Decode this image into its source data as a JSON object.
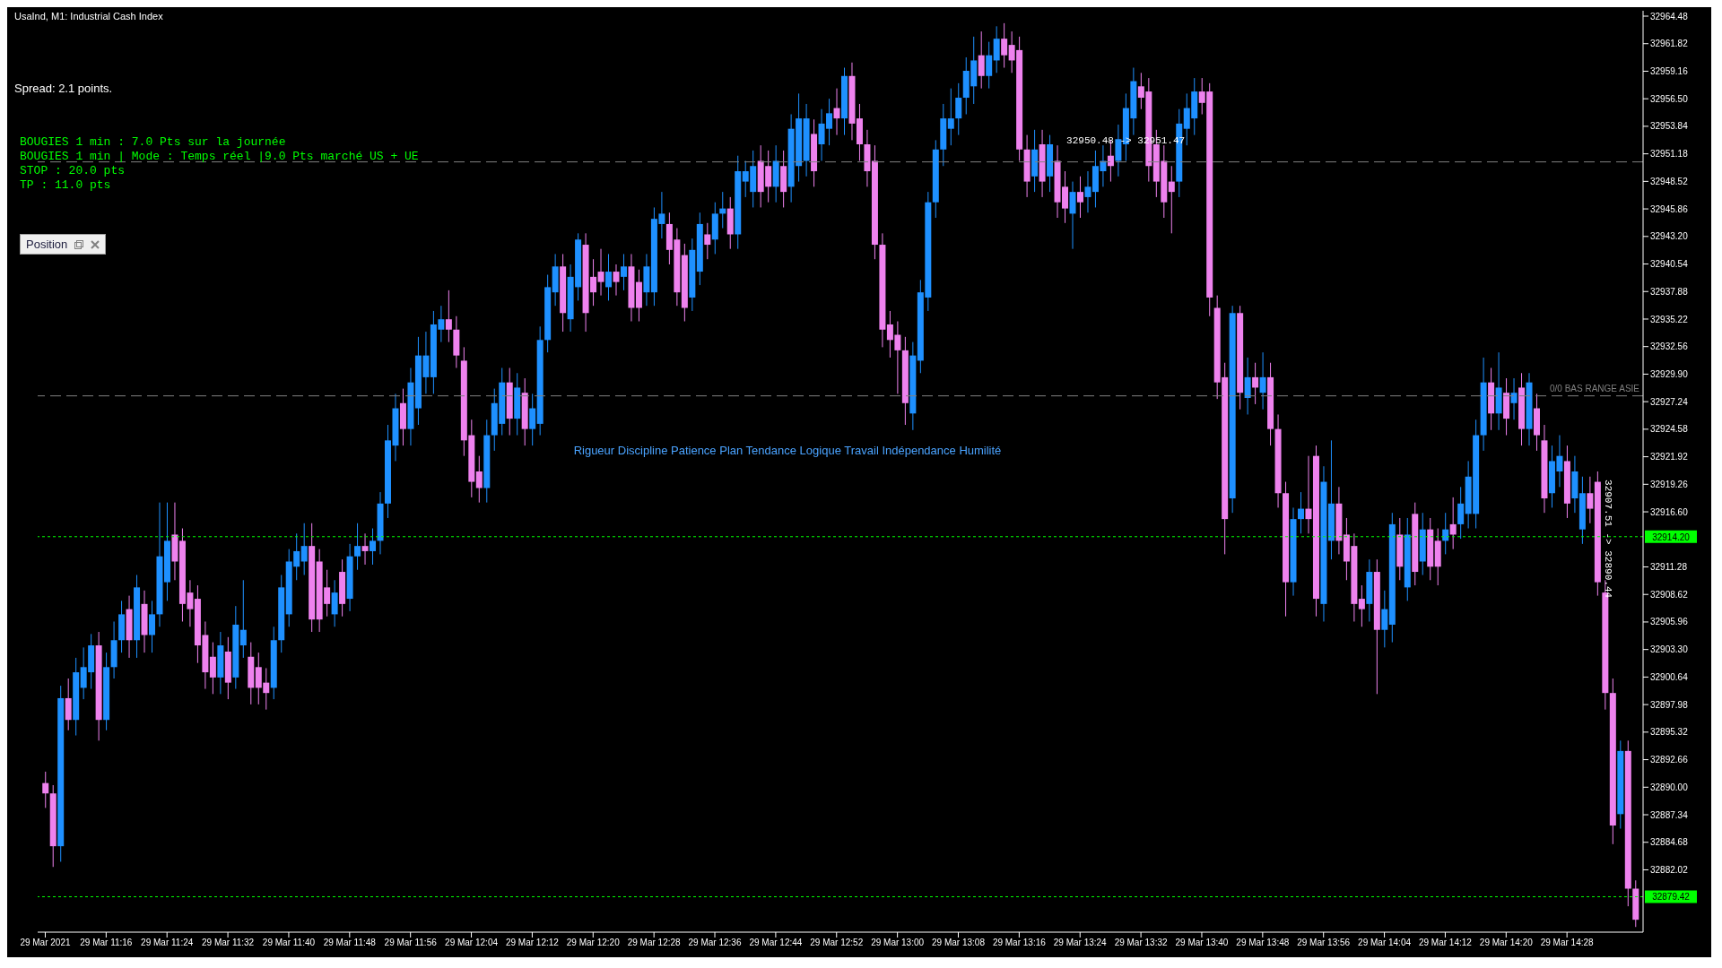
{
  "chart_data": {
    "type": "candlestick",
    "title": "UsaInd, M1: Industrial Cash Index",
    "annotations": [
      "Spread: 2.1 points.",
      "BOUGIES 1 min : 7.0 Pts sur la journée",
      "BOUGIES 1 min | Mode : Temps réel |9.0 Pts marché US + UE",
      "STOP : 20.0 pts",
      "TP : 11.0 pts",
      "Position",
      "Rigueur Discipline Patience Plan Tendance Logique Travail Indépendance Humilité",
      {
        "text": "32950.48 -> 32951.47",
        "x": "2021-03-29T13:30",
        "y": 32951.5
      },
      {
        "text": "32907.51 -> 32890.44",
        "x": "2021-03-29T14:33",
        "y": 32914
      }
    ],
    "x": [
      "2021-03-29T11:08",
      "2021-03-29T11:09",
      "2021-03-29T11:10",
      "2021-03-29T11:11",
      "2021-03-29T11:12",
      "2021-03-29T11:13",
      "2021-03-29T11:14",
      "2021-03-29T11:15",
      "2021-03-29T11:16",
      "2021-03-29T11:17",
      "2021-03-29T11:18",
      "2021-03-29T11:19",
      "2021-03-29T11:20",
      "2021-03-29T11:21",
      "2021-03-29T11:22",
      "2021-03-29T11:23",
      "2021-03-29T11:24",
      "2021-03-29T11:25",
      "2021-03-29T11:26",
      "2021-03-29T11:27",
      "2021-03-29T11:28",
      "2021-03-29T11:29",
      "2021-03-29T11:30",
      "2021-03-29T11:31",
      "2021-03-29T11:32",
      "2021-03-29T11:33",
      "2021-03-29T11:34",
      "2021-03-29T11:35",
      "2021-03-29T11:36",
      "2021-03-29T11:37",
      "2021-03-29T11:38",
      "2021-03-29T11:39",
      "2021-03-29T11:40",
      "2021-03-29T11:41",
      "2021-03-29T11:42",
      "2021-03-29T11:43",
      "2021-03-29T11:44",
      "2021-03-29T11:45",
      "2021-03-29T11:46",
      "2021-03-29T11:47",
      "2021-03-29T11:48",
      "2021-03-29T11:49",
      "2021-03-29T11:50",
      "2021-03-29T11:51",
      "2021-03-29T11:52",
      "2021-03-29T11:53",
      "2021-03-29T11:54",
      "2021-03-29T11:55",
      "2021-03-29T11:56",
      "2021-03-29T11:57",
      "2021-03-29T11:58",
      "2021-03-29T11:59",
      "2021-03-29T12:00",
      "2021-03-29T12:01",
      "2021-03-29T12:02",
      "2021-03-29T12:03",
      "2021-03-29T12:04",
      "2021-03-29T12:05",
      "2021-03-29T12:06",
      "2021-03-29T12:07",
      "2021-03-29T12:08",
      "2021-03-29T12:09",
      "2021-03-29T12:10",
      "2021-03-29T12:11",
      "2021-03-29T12:12",
      "2021-03-29T12:13",
      "2021-03-29T12:14",
      "2021-03-29T12:15",
      "2021-03-29T12:16",
      "2021-03-29T12:17",
      "2021-03-29T12:18",
      "2021-03-29T12:19",
      "2021-03-29T12:20",
      "2021-03-29T12:21",
      "2021-03-29T12:22",
      "2021-03-29T12:23",
      "2021-03-29T12:24",
      "2021-03-29T12:25",
      "2021-03-29T12:26",
      "2021-03-29T12:27",
      "2021-03-29T12:28",
      "2021-03-29T12:29",
      "2021-03-29T12:30",
      "2021-03-29T12:31",
      "2021-03-29T12:32",
      "2021-03-29T12:33",
      "2021-03-29T12:34",
      "2021-03-29T12:35",
      "2021-03-29T12:36",
      "2021-03-29T12:37",
      "2021-03-29T12:38",
      "2021-03-29T12:39",
      "2021-03-29T12:40",
      "2021-03-29T12:41",
      "2021-03-29T12:42",
      "2021-03-29T12:43",
      "2021-03-29T12:44",
      "2021-03-29T12:45",
      "2021-03-29T12:46",
      "2021-03-29T12:47",
      "2021-03-29T12:48",
      "2021-03-29T12:49",
      "2021-03-29T12:50",
      "2021-03-29T12:51",
      "2021-03-29T12:52",
      "2021-03-29T12:53",
      "2021-03-29T12:54",
      "2021-03-29T12:55",
      "2021-03-29T12:56",
      "2021-03-29T12:57",
      "2021-03-29T12:58",
      "2021-03-29T12:59",
      "2021-03-29T13:00",
      "2021-03-29T13:01",
      "2021-03-29T13:02",
      "2021-03-29T13:03",
      "2021-03-29T13:04",
      "2021-03-29T13:05",
      "2021-03-29T13:06",
      "2021-03-29T13:07",
      "2021-03-29T13:08",
      "2021-03-29T13:09",
      "2021-03-29T13:10",
      "2021-03-29T13:11",
      "2021-03-29T13:12",
      "2021-03-29T13:13",
      "2021-03-29T13:14",
      "2021-03-29T13:15",
      "2021-03-29T13:16",
      "2021-03-29T13:17",
      "2021-03-29T13:18",
      "2021-03-29T13:19",
      "2021-03-29T13:20",
      "2021-03-29T13:21",
      "2021-03-29T13:22",
      "2021-03-29T13:23",
      "2021-03-29T13:24",
      "2021-03-29T13:25",
      "2021-03-29T13:26",
      "2021-03-29T13:27",
      "2021-03-29T13:28",
      "2021-03-29T13:29",
      "2021-03-29T13:30",
      "2021-03-29T13:31",
      "2021-03-29T13:32",
      "2021-03-29T13:33",
      "2021-03-29T13:34",
      "2021-03-29T13:35",
      "2021-03-29T13:36",
      "2021-03-29T13:37",
      "2021-03-29T13:38",
      "2021-03-29T13:39",
      "2021-03-29T13:40",
      "2021-03-29T13:41",
      "2021-03-29T13:42",
      "2021-03-29T13:43",
      "2021-03-29T13:44",
      "2021-03-29T13:45",
      "2021-03-29T13:46",
      "2021-03-29T13:47",
      "2021-03-29T13:48",
      "2021-03-29T13:49",
      "2021-03-29T13:50",
      "2021-03-29T13:51",
      "2021-03-29T13:52",
      "2021-03-29T13:53",
      "2021-03-29T13:54",
      "2021-03-29T13:55",
      "2021-03-29T13:56",
      "2021-03-29T13:57",
      "2021-03-29T13:58",
      "2021-03-29T13:59",
      "2021-03-29T14:00",
      "2021-03-29T14:01",
      "2021-03-29T14:02",
      "2021-03-29T14:03",
      "2021-03-29T14:04",
      "2021-03-29T14:05",
      "2021-03-29T14:06",
      "2021-03-29T14:07",
      "2021-03-29T14:08",
      "2021-03-29T14:09",
      "2021-03-29T14:10",
      "2021-03-29T14:11",
      "2021-03-29T14:12",
      "2021-03-29T14:13",
      "2021-03-29T14:14",
      "2021-03-29T14:15",
      "2021-03-29T14:16",
      "2021-03-29T14:17",
      "2021-03-29T14:18",
      "2021-03-29T14:19",
      "2021-03-29T14:20",
      "2021-03-29T14:21",
      "2021-03-29T14:22",
      "2021-03-29T14:23",
      "2021-03-29T14:24",
      "2021-03-29T14:25",
      "2021-03-29T14:26",
      "2021-03-29T14:27",
      "2021-03-29T14:28",
      "2021-03-29T14:29",
      "2021-03-29T14:30",
      "2021-03-29T14:31",
      "2021-03-29T14:32",
      "2021-03-29T14:33",
      "2021-03-29T14:34",
      "2021-03-29T14:35",
      "2021-03-29T14:36",
      "2021-03-29T14:37"
    ],
    "ohlc": [
      [
        32890.4,
        32891.5,
        32888.0,
        32889.4
      ],
      [
        32889.4,
        32890.2,
        32882.3,
        32884.3
      ],
      [
        32884.3,
        32899.8,
        32882.8,
        32898.6
      ],
      [
        32898.6,
        32900.5,
        32895.5,
        32896.5
      ],
      [
        32896.5,
        32902.5,
        32895.0,
        32901.1
      ],
      [
        32899.6,
        32903.5,
        32898.5,
        32901.6
      ],
      [
        32901.1,
        32904.8,
        32899.5,
        32903.7
      ],
      [
        32903.7,
        32905.0,
        32894.5,
        32896.5
      ],
      [
        32896.5,
        32903.0,
        32895.5,
        32901.6
      ],
      [
        32901.6,
        32906.0,
        32900.5,
        32904.2
      ],
      [
        32904.2,
        32908.0,
        32903.0,
        32906.7
      ],
      [
        32907.2,
        32908.5,
        32902.5,
        32904.2
      ],
      [
        32904.2,
        32910.5,
        32902.5,
        32909.3
      ],
      [
        32907.7,
        32909.0,
        32903.0,
        32904.7
      ],
      [
        32904.7,
        32908.0,
        32903.0,
        32906.7
      ],
      [
        32906.7,
        32917.5,
        32905.5,
        32912.3
      ],
      [
        32909.8,
        32917.5,
        32908.0,
        32913.8
      ],
      [
        32914.4,
        32917.5,
        32910.0,
        32911.8
      ],
      [
        32913.8,
        32915.0,
        32906.0,
        32907.7
      ],
      [
        32908.8,
        32910.0,
        32905.5,
        32907.2
      ],
      [
        32908.2,
        32909.5,
        32902.0,
        32903.7
      ],
      [
        32904.7,
        32906.0,
        32899.5,
        32901.1
      ],
      [
        32902.6,
        32904.0,
        32899.0,
        32900.6
      ],
      [
        32900.6,
        32905.0,
        32899.0,
        32903.7
      ],
      [
        32903.1,
        32904.5,
        32898.5,
        32900.1
      ],
      [
        32900.6,
        32907.5,
        32899.5,
        32905.7
      ],
      [
        32903.7,
        32910.0,
        32902.5,
        32905.2
      ],
      [
        32902.6,
        32904.0,
        32898.0,
        32899.6
      ],
      [
        32901.6,
        32903.0,
        32898.0,
        32899.6
      ],
      [
        32900.1,
        32901.5,
        32897.5,
        32899.1
      ],
      [
        32899.6,
        32905.5,
        32898.5,
        32904.2
      ],
      [
        32904.2,
        32910.5,
        32903.0,
        32909.3
      ],
      [
        32906.7,
        32913.0,
        32905.5,
        32911.8
      ],
      [
        32911.3,
        32914.5,
        32910.0,
        32912.8
      ],
      [
        32911.8,
        32915.5,
        32910.5,
        32913.3
      ],
      [
        32913.3,
        32915.5,
        32905.0,
        32906.2
      ],
      [
        32911.8,
        32913.0,
        32905.0,
        32906.2
      ],
      [
        32909.3,
        32911.0,
        32906.5,
        32907.7
      ],
      [
        32906.7,
        32910.0,
        32905.5,
        32908.8
      ],
      [
        32910.8,
        32912.0,
        32906.5,
        32907.7
      ],
      [
        32908.2,
        32913.5,
        32907.0,
        32912.3
      ],
      [
        32912.3,
        32915.5,
        32911.0,
        32913.3
      ],
      [
        32913.3,
        32914.5,
        32911.5,
        32912.8
      ],
      [
        32912.8,
        32915.0,
        32911.5,
        32913.8
      ],
      [
        32913.8,
        32918.5,
        32912.5,
        32917.4
      ],
      [
        32917.4,
        32925.0,
        32916.0,
        32923.5
      ],
      [
        32923.0,
        32928.0,
        32921.5,
        32926.6
      ],
      [
        32927.1,
        32928.5,
        32923.0,
        32924.6
      ],
      [
        32924.6,
        32930.5,
        32923.0,
        32929.1
      ],
      [
        32926.6,
        32933.5,
        32925.0,
        32931.7
      ],
      [
        32929.6,
        32934.0,
        32928.0,
        32931.7
      ],
      [
        32929.6,
        32936.0,
        32928.0,
        32934.7
      ],
      [
        32934.2,
        32936.5,
        32933.0,
        32935.2
      ],
      [
        32935.2,
        32938.0,
        32933.0,
        32934.2
      ],
      [
        32934.2,
        32935.5,
        32930.5,
        32931.7
      ],
      [
        32931.2,
        32932.5,
        32922.0,
        32923.5
      ],
      [
        32924.0,
        32925.5,
        32918.0,
        32919.5
      ],
      [
        32920.5,
        32922.0,
        32917.5,
        32918.9
      ],
      [
        32918.9,
        32925.5,
        32917.5,
        32924.0
      ],
      [
        32924.0,
        32928.5,
        32922.5,
        32927.1
      ],
      [
        32925.1,
        32930.5,
        32924.0,
        32929.1
      ],
      [
        32929.1,
        32930.5,
        32924.0,
        32925.6
      ],
      [
        32925.6,
        32930.0,
        32924.0,
        32928.6
      ],
      [
        32928.1,
        32929.5,
        32923.0,
        32924.6
      ],
      [
        32924.6,
        32928.0,
        32923.0,
        32926.6
      ],
      [
        32925.1,
        32934.5,
        32924.0,
        32933.2
      ],
      [
        32933.2,
        32939.5,
        32932.0,
        32938.3
      ],
      [
        32937.8,
        32941.5,
        32936.5,
        32940.3
      ],
      [
        32940.3,
        32941.5,
        32934.0,
        32935.8
      ],
      [
        32935.2,
        32940.5,
        32934.0,
        32939.3
      ],
      [
        32938.3,
        32943.5,
        32937.0,
        32942.9
      ],
      [
        32942.4,
        32943.5,
        32934.0,
        32935.8
      ],
      [
        32939.3,
        32941.0,
        32936.5,
        32937.8
      ],
      [
        32939.8,
        32942.0,
        32937.5,
        32938.8
      ],
      [
        32938.3,
        32941.5,
        32937.0,
        32939.8
      ],
      [
        32939.8,
        32940.5,
        32937.5,
        32938.8
      ],
      [
        32939.3,
        32941.5,
        32938.0,
        32940.3
      ],
      [
        32940.3,
        32941.5,
        32935.0,
        32936.3
      ],
      [
        32938.8,
        32940.0,
        32935.0,
        32936.3
      ],
      [
        32937.8,
        32941.5,
        32936.5,
        32940.3
      ],
      [
        32937.8,
        32946.0,
        32936.5,
        32944.9
      ],
      [
        32944.4,
        32947.5,
        32943.0,
        32945.4
      ],
      [
        32944.4,
        32945.5,
        32940.5,
        32941.9
      ],
      [
        32942.9,
        32944.0,
        32936.5,
        32937.8
      ],
      [
        32941.4,
        32942.5,
        32935.0,
        32936.3
      ],
      [
        32937.3,
        32943.0,
        32936.0,
        32941.9
      ],
      [
        32939.8,
        32945.5,
        32938.5,
        32944.4
      ],
      [
        32943.4,
        32944.5,
        32941.0,
        32942.4
      ],
      [
        32942.9,
        32946.5,
        32941.5,
        32945.4
      ],
      [
        32945.4,
        32947.5,
        32944.0,
        32945.9
      ],
      [
        32945.9,
        32947.0,
        32942.0,
        32943.4
      ],
      [
        32943.4,
        32951.0,
        32942.0,
        32949.5
      ],
      [
        32948.5,
        32950.5,
        32947.0,
        32949.5
      ],
      [
        32947.5,
        32951.5,
        32946.0,
        32950.0
      ],
      [
        32950.5,
        32952.0,
        32946.0,
        32947.5
      ],
      [
        32950.0,
        32951.5,
        32946.5,
        32948.0
      ],
      [
        32948.0,
        32952.0,
        32946.5,
        32950.5
      ],
      [
        32950.0,
        32951.5,
        32946.0,
        32947.5
      ],
      [
        32948.0,
        32955.0,
        32946.5,
        32953.6
      ],
      [
        32950.0,
        32957.0,
        32948.5,
        32954.6
      ],
      [
        32950.5,
        32956.0,
        32949.0,
        32954.6
      ],
      [
        32953.1,
        32954.5,
        32948.0,
        32949.5
      ],
      [
        32952.1,
        32955.5,
        32950.5,
        32954.1
      ],
      [
        32953.6,
        32956.5,
        32952.0,
        32955.1
      ],
      [
        32955.6,
        32957.5,
        32953.0,
        32954.6
      ],
      [
        32954.6,
        32959.5,
        32953.0,
        32958.7
      ],
      [
        32958.7,
        32960.0,
        32952.5,
        32954.1
      ],
      [
        32954.6,
        32956.0,
        32950.5,
        32952.1
      ],
      [
        32952.1,
        32953.5,
        32948.0,
        32949.5
      ],
      [
        32950.5,
        32952.0,
        32941.0,
        32942.4
      ],
      [
        32942.4,
        32943.5,
        32932.5,
        32934.2
      ],
      [
        32934.7,
        32936.0,
        32931.5,
        32933.2
      ],
      [
        32933.7,
        32935.0,
        32928.0,
        32932.2
      ],
      [
        32932.2,
        32933.5,
        32925.0,
        32927.1
      ],
      [
        32926.1,
        32933.0,
        32924.5,
        32931.7
      ],
      [
        32931.2,
        32939.0,
        32930.0,
        32937.8
      ],
      [
        32937.3,
        32947.5,
        32936.0,
        32946.5
      ],
      [
        32946.5,
        32952.5,
        32945.0,
        32951.6
      ],
      [
        32951.6,
        32956.0,
        32950.0,
        32954.6
      ],
      [
        32953.6,
        32957.5,
        32952.0,
        32954.6
      ],
      [
        32954.6,
        32958.0,
        32953.0,
        32956.6
      ],
      [
        32956.6,
        32960.5,
        32955.0,
        32959.2
      ],
      [
        32957.7,
        32962.5,
        32956.0,
        32960.2
      ],
      [
        32960.7,
        32963.0,
        32957.5,
        32958.7
      ],
      [
        32958.7,
        32962.0,
        32957.5,
        32960.7
      ],
      [
        32960.2,
        32963.5,
        32959.0,
        32962.3
      ],
      [
        32962.3,
        32963.8,
        32959.5,
        32960.7
      ],
      [
        32961.7,
        32963.0,
        32959.0,
        32960.2
      ],
      [
        32961.2,
        32962.5,
        32950.5,
        32951.6
      ],
      [
        32951.6,
        32953.0,
        32947.0,
        32948.5
      ],
      [
        32949.0,
        32953.5,
        32947.5,
        32951.6
      ],
      [
        32952.1,
        32953.5,
        32947.0,
        32948.5
      ],
      [
        32949.0,
        32953.0,
        32947.5,
        32952.1
      ],
      [
        32950.5,
        32952.0,
        32945.0,
        32946.5
      ],
      [
        32948.0,
        32949.5,
        32944.5,
        32945.9
      ],
      [
        32945.4,
        32948.5,
        32942.0,
        32947.5
      ],
      [
        32947.5,
        32949.0,
        32945.0,
        32946.5
      ],
      [
        32947.0,
        32949.5,
        32945.5,
        32948.0
      ],
      [
        32947.5,
        32951.5,
        32946.0,
        32950.0
      ],
      [
        32949.5,
        32952.0,
        32948.0,
        32950.5
      ],
      [
        32951.0,
        32952.5,
        32948.5,
        32950.0
      ],
      [
        32950.5,
        32954.0,
        32949.0,
        32952.6
      ],
      [
        32952.1,
        32957.0,
        32950.5,
        32955.6
      ],
      [
        32954.6,
        32959.5,
        32953.0,
        32958.2
      ],
      [
        32957.7,
        32959.0,
        32955.5,
        32956.6
      ],
      [
        32957.2,
        32958.5,
        32948.5,
        32950.0
      ],
      [
        32952.1,
        32953.5,
        32947.0,
        32948.5
      ],
      [
        32950.5,
        32952.0,
        32945.0,
        32946.5
      ],
      [
        32948.5,
        32950.0,
        32943.5,
        32947.5
      ],
      [
        32948.5,
        32955.5,
        32947.0,
        32954.1
      ],
      [
        32953.6,
        32957.0,
        32952.0,
        32955.6
      ],
      [
        32954.6,
        32958.5,
        32953.0,
        32957.2
      ],
      [
        32957.2,
        32958.5,
        32955.0,
        32956.1
      ],
      [
        32957.2,
        32958.0,
        32935.5,
        32937.3
      ],
      [
        32936.3,
        32937.5,
        32927.5,
        32929.1
      ],
      [
        32929.6,
        32931.0,
        32912.5,
        32915.9
      ],
      [
        32917.9,
        32936.5,
        32916.5,
        32935.8
      ],
      [
        32935.8,
        32936.5,
        32926.5,
        32928.1
      ],
      [
        32927.6,
        32931.5,
        32926.0,
        32929.6
      ],
      [
        32929.6,
        32931.0,
        32927.0,
        32928.6
      ],
      [
        32928.1,
        32932.0,
        32926.5,
        32929.6
      ],
      [
        32929.6,
        32931.0,
        32923.0,
        32924.6
      ],
      [
        32924.6,
        32926.0,
        32917.0,
        32918.4
      ],
      [
        32918.4,
        32919.5,
        32906.5,
        32909.8
      ],
      [
        32909.8,
        32917.0,
        32908.5,
        32915.9
      ],
      [
        32915.9,
        32918.5,
        32914.5,
        32916.9
      ],
      [
        32916.9,
        32922.0,
        32914.5,
        32915.9
      ],
      [
        32922.0,
        32923.0,
        32906.5,
        32908.2
      ],
      [
        32907.7,
        32921.0,
        32906.0,
        32919.5
      ],
      [
        32913.8,
        32923.5,
        32912.0,
        32917.4
      ],
      [
        32917.4,
        32919.0,
        32912.5,
        32913.8
      ],
      [
        32914.4,
        32916.0,
        32910.0,
        32911.8
      ],
      [
        32913.3,
        32914.5,
        32906.0,
        32907.7
      ],
      [
        32908.2,
        32909.5,
        32905.5,
        32907.2
      ],
      [
        32907.7,
        32912.0,
        32906.0,
        32910.8
      ],
      [
        32910.8,
        32912.0,
        32899.0,
        32905.2
      ],
      [
        32905.2,
        32909.0,
        32903.5,
        32907.2
      ],
      [
        32905.7,
        32916.5,
        32904.0,
        32915.4
      ],
      [
        32914.4,
        32916.0,
        32910.0,
        32911.3
      ],
      [
        32909.3,
        32916.0,
        32908.0,
        32914.4
      ],
      [
        32916.4,
        32917.5,
        32909.5,
        32910.8
      ],
      [
        32911.8,
        32916.5,
        32910.5,
        32914.9
      ],
      [
        32914.9,
        32916.0,
        32910.0,
        32911.3
      ],
      [
        32913.8,
        32915.0,
        32909.5,
        32911.3
      ],
      [
        32913.8,
        32916.5,
        32912.5,
        32914.9
      ],
      [
        32915.4,
        32918.0,
        32913.0,
        32914.4
      ],
      [
        32915.4,
        32919.0,
        32914.0,
        32917.4
      ],
      [
        32916.4,
        32921.5,
        32915.0,
        32920.0
      ],
      [
        32916.4,
        32925.5,
        32915.0,
        32924.0
      ],
      [
        32924.0,
        32931.5,
        32922.5,
        32929.1
      ],
      [
        32929.1,
        32930.5,
        32924.5,
        32926.1
      ],
      [
        32926.1,
        32932.0,
        32924.5,
        32928.6
      ],
      [
        32928.1,
        32929.5,
        32924.0,
        32925.6
      ],
      [
        32927.1,
        32929.5,
        32925.5,
        32928.1
      ],
      [
        32928.6,
        32930.0,
        32923.0,
        32924.6
      ],
      [
        32924.6,
        32930.0,
        32923.0,
        32929.1
      ],
      [
        32926.6,
        32928.0,
        32922.5,
        32924.0
      ],
      [
        32923.5,
        32925.0,
        32916.5,
        32917.9
      ],
      [
        32918.4,
        32923.0,
        32917.0,
        32921.5
      ],
      [
        32920.5,
        32924.0,
        32919.0,
        32922.0
      ],
      [
        32921.5,
        32923.0,
        32916.0,
        32917.4
      ],
      [
        32917.9,
        32922.0,
        32916.5,
        32920.5
      ],
      [
        32914.9,
        32920.0,
        32913.5,
        32918.4
      ],
      [
        32918.4,
        32920.0,
        32915.5,
        32916.9
      ],
      [
        32919.5,
        32920.5,
        32908.5,
        32909.8
      ],
      [
        32908.8,
        32910.0,
        32897.5,
        32899.1
      ],
      [
        32899.1,
        32900.5,
        32884.5,
        32886.3
      ],
      [
        32887.4,
        32894.5,
        32886.0,
        32893.5
      ],
      [
        32893.5,
        32894.5,
        32878.5,
        32880.2
      ],
      [
        32880.2,
        32881.0,
        32876.5,
        32877.2
      ]
    ],
    "colors": [
      "#ee82ee",
      "#ee82ee",
      "#1e90ff",
      "#ee82ee",
      "#1e90ff",
      "#1e90ff",
      "#1e90ff",
      "#ee82ee",
      "#1e90ff",
      "#1e90ff",
      "#1e90ff",
      "#ee82ee",
      "#1e90ff",
      "#ee82ee",
      "#1e90ff",
      "#1e90ff",
      "#1e90ff",
      "#ee82ee",
      "#ee82ee",
      "#ee82ee",
      "#ee82ee",
      "#ee82ee",
      "#ee82ee",
      "#1e90ff",
      "#ee82ee",
      "#1e90ff",
      "#1e90ff",
      "#ee82ee",
      "#ee82ee",
      "#ee82ee",
      "#1e90ff",
      "#1e90ff",
      "#1e90ff",
      "#1e90ff",
      "#1e90ff",
      "#ee82ee",
      "#ee82ee",
      "#ee82ee",
      "#1e90ff",
      "#ee82ee",
      "#1e90ff",
      "#1e90ff",
      "#ee82ee",
      "#1e90ff",
      "#1e90ff",
      "#1e90ff",
      "#1e90ff",
      "#ee82ee",
      "#1e90ff",
      "#1e90ff",
      "#1e90ff",
      "#1e90ff",
      "#1e90ff",
      "#ee82ee",
      "#ee82ee",
      "#ee82ee",
      "#ee82ee",
      "#ee82ee",
      "#1e90ff",
      "#1e90ff",
      "#1e90ff",
      "#ee82ee",
      "#1e90ff",
      "#ee82ee",
      "#1e90ff",
      "#1e90ff",
      "#1e90ff",
      "#1e90ff",
      "#ee82ee",
      "#1e90ff",
      "#1e90ff",
      "#ee82ee",
      "#ee82ee",
      "#ee82ee",
      "#1e90ff",
      "#ee82ee",
      "#1e90ff",
      "#ee82ee",
      "#ee82ee",
      "#1e90ff",
      "#1e90ff",
      "#1e90ff",
      "#ee82ee",
      "#ee82ee",
      "#ee82ee",
      "#1e90ff",
      "#1e90ff",
      "#ee82ee",
      "#1e90ff",
      "#1e90ff",
      "#ee82ee",
      "#1e90ff",
      "#1e90ff",
      "#1e90ff",
      "#ee82ee",
      "#ee82ee",
      "#1e90ff",
      "#ee82ee",
      "#1e90ff",
      "#1e90ff",
      "#1e90ff",
      "#ee82ee",
      "#1e90ff",
      "#1e90ff",
      "#ee82ee",
      "#1e90ff",
      "#ee82ee",
      "#ee82ee",
      "#ee82ee",
      "#ee82ee",
      "#ee82ee",
      "#ee82ee",
      "#ee82ee",
      "#ee82ee",
      "#1e90ff",
      "#1e90ff",
      "#1e90ff",
      "#1e90ff",
      "#1e90ff",
      "#1e90ff",
      "#1e90ff",
      "#1e90ff",
      "#1e90ff",
      "#ee82ee",
      "#1e90ff",
      "#1e90ff",
      "#ee82ee",
      "#ee82ee",
      "#ee82ee",
      "#ee82ee",
      "#1e90ff",
      "#ee82ee",
      "#1e90ff",
      "#ee82ee",
      "#ee82ee",
      "#1e90ff",
      "#ee82ee",
      "#1e90ff",
      "#1e90ff",
      "#1e90ff",
      "#ee82ee",
      "#1e90ff",
      "#1e90ff",
      "#1e90ff",
      "#ee82ee",
      "#ee82ee",
      "#ee82ee",
      "#ee82ee",
      "#ee82ee",
      "#1e90ff",
      "#1e90ff",
      "#1e90ff",
      "#ee82ee",
      "#ee82ee",
      "#ee82ee",
      "#ee82ee",
      "#1e90ff",
      "#ee82ee",
      "#1e90ff",
      "#ee82ee",
      "#1e90ff",
      "#ee82ee",
      "#ee82ee",
      "#ee82ee",
      "#1e90ff",
      "#1e90ff",
      "#ee82ee",
      "#ee82ee",
      "#1e90ff",
      "#1e90ff",
      "#ee82ee",
      "#ee82ee",
      "#ee82ee",
      "#ee82ee",
      "#1e90ff",
      "#ee82ee",
      "#1e90ff",
      "#1e90ff",
      "#ee82ee",
      "#1e90ff",
      "#ee82ee",
      "#1e90ff",
      "#ee82ee",
      "#ee82ee",
      "#1e90ff",
      "#ee82ee",
      "#1e90ff",
      "#1e90ff",
      "#1e90ff",
      "#1e90ff",
      "#ee82ee",
      "#1e90ff",
      "#ee82ee",
      "#1e90ff",
      "#ee82ee",
      "#1e90ff",
      "#ee82ee",
      "#ee82ee",
      "#1e90ff",
      "#1e90ff",
      "#ee82ee",
      "#1e90ff",
      "#1e90ff",
      "#ee82ee",
      "#ee82ee",
      "#ee82ee",
      "#ee82ee",
      "#1e90ff",
      "#ee82ee",
      "#ee82ee"
    ],
    "xlim": [
      "2021-03-29T11:07",
      "2021-03-29T14:38"
    ],
    "xticks": [
      {
        "value": "2021-03-29T11:08",
        "label": "29 Mar 2021"
      },
      {
        "value": "2021-03-29T11:16",
        "label": "29 Mar 11:16"
      },
      {
        "value": "2021-03-29T11:24",
        "label": "29 Mar 11:24"
      },
      {
        "value": "2021-03-29T11:32",
        "label": "29 Mar 11:32"
      },
      {
        "value": "2021-03-29T11:40",
        "label": "29 Mar 11:40"
      },
      {
        "value": "2021-03-29T11:48",
        "label": "29 Mar 11:48"
      },
      {
        "value": "2021-03-29T11:56",
        "label": "29 Mar 11:56"
      },
      {
        "value": "2021-03-29T12:04",
        "label": "29 Mar 12:04"
      },
      {
        "value": "2021-03-29T12:12",
        "label": "29 Mar 12:12"
      },
      {
        "value": "2021-03-29T12:20",
        "label": "29 Mar 12:20"
      },
      {
        "value": "2021-03-29T12:28",
        "label": "29 Mar 12:28"
      },
      {
        "value": "2021-03-29T12:36",
        "label": "29 Mar 12:36"
      },
      {
        "value": "2021-03-29T12:44",
        "label": "29 Mar 12:44"
      },
      {
        "value": "2021-03-29T12:52",
        "label": "29 Mar 12:52"
      },
      {
        "value": "2021-03-29T13:00",
        "label": "29 Mar 13:00"
      },
      {
        "value": "2021-03-29T13:08",
        "label": "29 Mar 13:08"
      },
      {
        "value": "2021-03-29T13:16",
        "label": "29 Mar 13:16"
      },
      {
        "value": "2021-03-29T13:24",
        "label": "29 Mar 13:24"
      },
      {
        "value": "2021-03-29T13:32",
        "label": "29 Mar 13:32"
      },
      {
        "value": "2021-03-29T13:40",
        "label": "29 Mar 13:40"
      },
      {
        "value": "2021-03-29T13:48",
        "label": "29 Mar 13:48"
      },
      {
        "value": "2021-03-29T13:56",
        "label": "29 Mar 13:56"
      },
      {
        "value": "2021-03-29T14:04",
        "label": "29 Mar 14:04"
      },
      {
        "value": "2021-03-29T14:12",
        "label": "29 Mar 14:12"
      },
      {
        "value": "2021-03-29T14:20",
        "label": "29 Mar 14:20"
      },
      {
        "value": "2021-03-29T14:28",
        "label": "29 Mar 14:28"
      }
    ],
    "ylim": [
      32876,
      32965
    ],
    "yticks": [
      32882.02,
      32884.68,
      32887.34,
      {
        "value": 32890,
        "label": "32890.00"
      },
      32892.66,
      32895.32,
      32897.98,
      32900.64,
      {
        "value": 32903.3,
        "label": "32903.30"
      },
      32905.96,
      32908.62,
      32911.28,
      {
        "value": 32916.6,
        "label": "32916.60"
      },
      32919.26,
      32921.92,
      32924.58,
      32927.24,
      {
        "value": 32929.9,
        "label": "32929.90"
      },
      32932.56,
      32935.22,
      32937.88,
      32940.54,
      {
        "value": 32943.2,
        "label": "32943.20"
      },
      32945.86,
      32948.52,
      32951.18,
      32953.84,
      {
        "value": 32956.5,
        "label": "32956.50"
      },
      32959.16,
      32961.82,
      32964.48
    ],
    "ref_lines": [
      {
        "axis": "y",
        "value": 32950.4,
        "color": "#808080",
        "line_style": "dashed"
      },
      {
        "axis": "y",
        "value": 32927.8,
        "label": "0/0 BAS RANGE ASIE",
        "color": "#808080",
        "line_style": "dashed"
      },
      {
        "axis": "y",
        "value": 32914.2,
        "label": "32914.20",
        "color": "#00ff00",
        "line_style": "dotted"
      },
      {
        "axis": "y",
        "value": 32879.42,
        "label": "32879.42",
        "color": "#00ff00",
        "line_style": "dotted"
      }
    ]
  }
}
